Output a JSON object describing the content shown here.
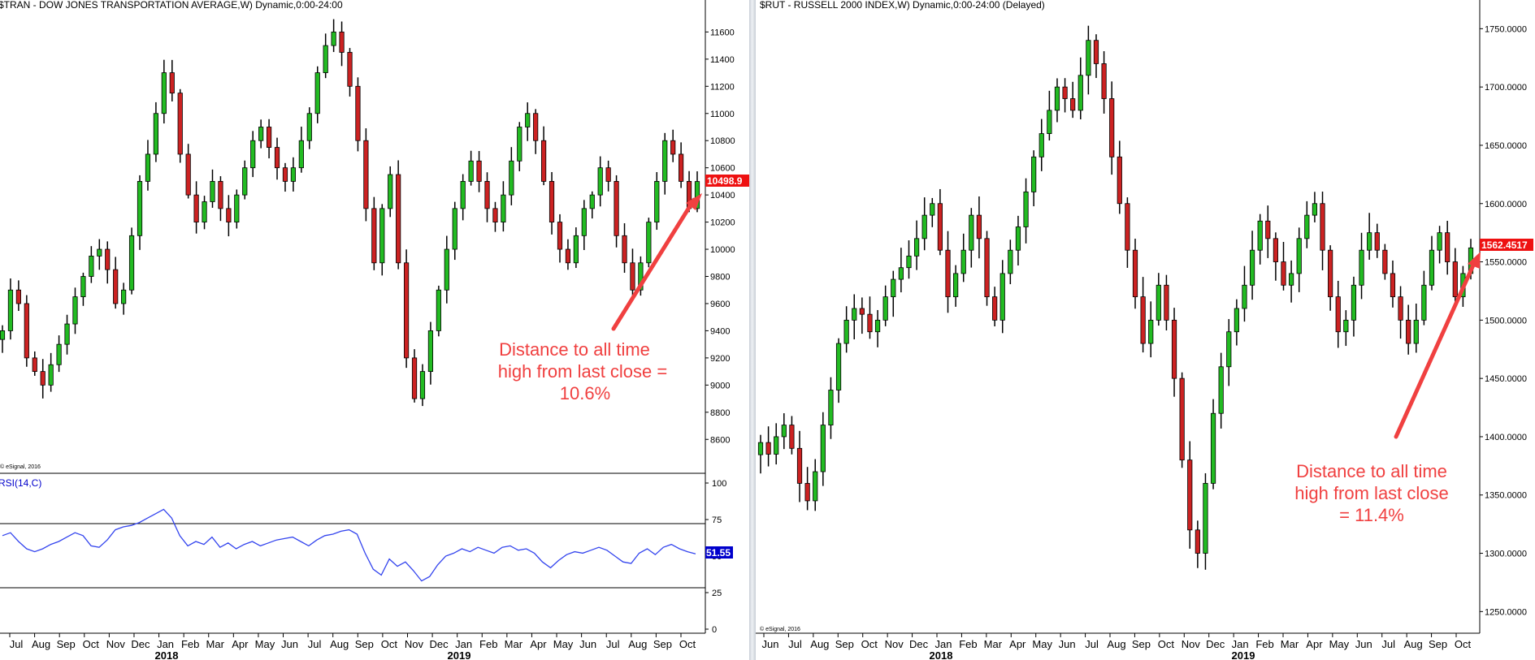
{
  "left_chart": {
    "title": "$TRAN - DOW JONES TRANSPORTATION AVERAGE,W) Dynamic,0:00-24:00",
    "last_price_label": "10498.9",
    "copyright": "© eSignal, 2016",
    "annotation": [
      "Distance to all time",
      "high from last close =",
      "10.6%"
    ],
    "rsi_title": "RSI(14,C)",
    "rsi_value_label": "51.55"
  },
  "right_chart": {
    "title": "$RUT - RUSSELL 2000 INDEX,W) Dynamic,0:00-24:00 (Delayed)",
    "last_price_label": "1562.4517",
    "copyright": "© eSignal, 2016",
    "annotation": [
      "Distance to all time",
      "high from last close",
      "= 11.4%"
    ]
  },
  "colors": {
    "up": "#22bb22",
    "down": "#cc2222",
    "rsi_line": "#3344ee",
    "annotation": "#f04040",
    "price_badge": "#ee1111",
    "rsi_badge": "#0000cc"
  },
  "chart_data": [
    {
      "type": "candlestick",
      "title": "$TRAN - DOW JONES TRANSPORTATION AVERAGE,W) Dynamic,0:00-24:00",
      "y_axis_ticks": [
        8600,
        8800,
        9000,
        9200,
        9400,
        9600,
        9800,
        10000,
        10200,
        10400,
        10600,
        10800,
        11000,
        11200,
        11400,
        11600
      ],
      "ylim": [
        8470,
        11680
      ],
      "x_tick_labels": [
        "Jul",
        "Aug",
        "Sep",
        "Oct",
        "Nov",
        "Dec",
        "Jan",
        "Feb",
        "Mar",
        "Apr",
        "May",
        "Jun",
        "Jul",
        "Aug",
        "Sep",
        "Oct",
        "Nov",
        "Dec",
        "Jan",
        "Feb",
        "Mar",
        "Apr",
        "May",
        "Jun",
        "Jul",
        "Aug",
        "Sep",
        "Oct"
      ],
      "x_year_labels": [
        "2018",
        "2019"
      ],
      "close_path": [
        9400,
        9700,
        9600,
        9200,
        9100,
        9000,
        9150,
        9300,
        9450,
        9650,
        9800,
        9950,
        10000,
        9850,
        9600,
        9700,
        10100,
        10500,
        10700,
        11000,
        11300,
        11150,
        10700,
        10400,
        10200,
        10350,
        10500,
        10300,
        10200,
        10400,
        10600,
        10800,
        10900,
        10750,
        10600,
        10500,
        10600,
        10800,
        11000,
        11300,
        11500,
        11600,
        11450,
        11200,
        10800,
        10300,
        9900,
        10300,
        10550,
        9900,
        9200,
        8900,
        9100,
        9400,
        9700,
        10000,
        10300,
        10500,
        10650,
        10500,
        10300,
        10200,
        10400,
        10650,
        10900,
        11000,
        10800,
        10500,
        10200,
        10000,
        9900,
        10100,
        10300,
        10400,
        10600,
        10500,
        10100,
        9900,
        9700,
        9900,
        10200,
        10500,
        10800,
        10700,
        10500,
        10300,
        10499
      ],
      "last_value": 10498.9,
      "rsi": {
        "name": "RSI(14,C)",
        "levels": [
          30,
          70
        ],
        "y_axis_ticks": [
          0,
          25,
          50,
          75,
          100
        ],
        "values": [
          64,
          66,
          60,
          55,
          53,
          55,
          58,
          60,
          63,
          66,
          64,
          57,
          56,
          61,
          68,
          70,
          71,
          73,
          76,
          79,
          82,
          76,
          64,
          57,
          60,
          58,
          63,
          56,
          59,
          55,
          58,
          60,
          57,
          59,
          61,
          62,
          63,
          60,
          57,
          61,
          64,
          65,
          67,
          68,
          65,
          52,
          41,
          37,
          48,
          43,
          46,
          40,
          33,
          36,
          44,
          50,
          52,
          55,
          53,
          56,
          54,
          52,
          56,
          57,
          54,
          55,
          52,
          46,
          42,
          47,
          51,
          53,
          52,
          54,
          56,
          54,
          50,
          46,
          45,
          52,
          55,
          51,
          56,
          58,
          55,
          53,
          51.55
        ],
        "last_value": 51.55
      }
    },
    {
      "type": "candlestick",
      "title": "$RUT - RUSSELL 2000 INDEX,W) Dynamic,0:00-24:00 (Delayed)",
      "y_axis_ticks": [
        1250,
        1300,
        1350,
        1400,
        1450,
        1500,
        1550,
        1600,
        1650,
        1700,
        1750
      ],
      "ylim": [
        1237,
        1760
      ],
      "x_tick_labels": [
        "Jun",
        "Jul",
        "Aug",
        "Sep",
        "Oct",
        "Nov",
        "Dec",
        "Jan",
        "Feb",
        "Mar",
        "Apr",
        "May",
        "Jun",
        "Jul",
        "Aug",
        "Sep",
        "Oct",
        "Nov",
        "Dec",
        "Jan",
        "Feb",
        "Mar",
        "Apr",
        "May",
        "Jun",
        "Jul",
        "Aug",
        "Sep",
        "Oct"
      ],
      "x_year_labels": [
        "2018",
        "2019"
      ],
      "close_path": [
        1395,
        1385,
        1400,
        1410,
        1390,
        1360,
        1345,
        1370,
        1410,
        1440,
        1480,
        1500,
        1510,
        1505,
        1490,
        1500,
        1520,
        1535,
        1545,
        1555,
        1570,
        1590,
        1600,
        1560,
        1520,
        1540,
        1560,
        1590,
        1570,
        1520,
        1500,
        1540,
        1560,
        1580,
        1610,
        1640,
        1660,
        1680,
        1700,
        1690,
        1680,
        1710,
        1740,
        1720,
        1690,
        1640,
        1600,
        1560,
        1520,
        1480,
        1500,
        1530,
        1500,
        1450,
        1380,
        1320,
        1300,
        1360,
        1420,
        1460,
        1490,
        1510,
        1530,
        1560,
        1585,
        1570,
        1550,
        1530,
        1540,
        1570,
        1590,
        1600,
        1560,
        1520,
        1490,
        1500,
        1530,
        1560,
        1575,
        1560,
        1540,
        1520,
        1500,
        1480,
        1500,
        1530,
        1560,
        1575,
        1550,
        1520,
        1540,
        1562
      ],
      "last_value": 1562.4517
    }
  ]
}
